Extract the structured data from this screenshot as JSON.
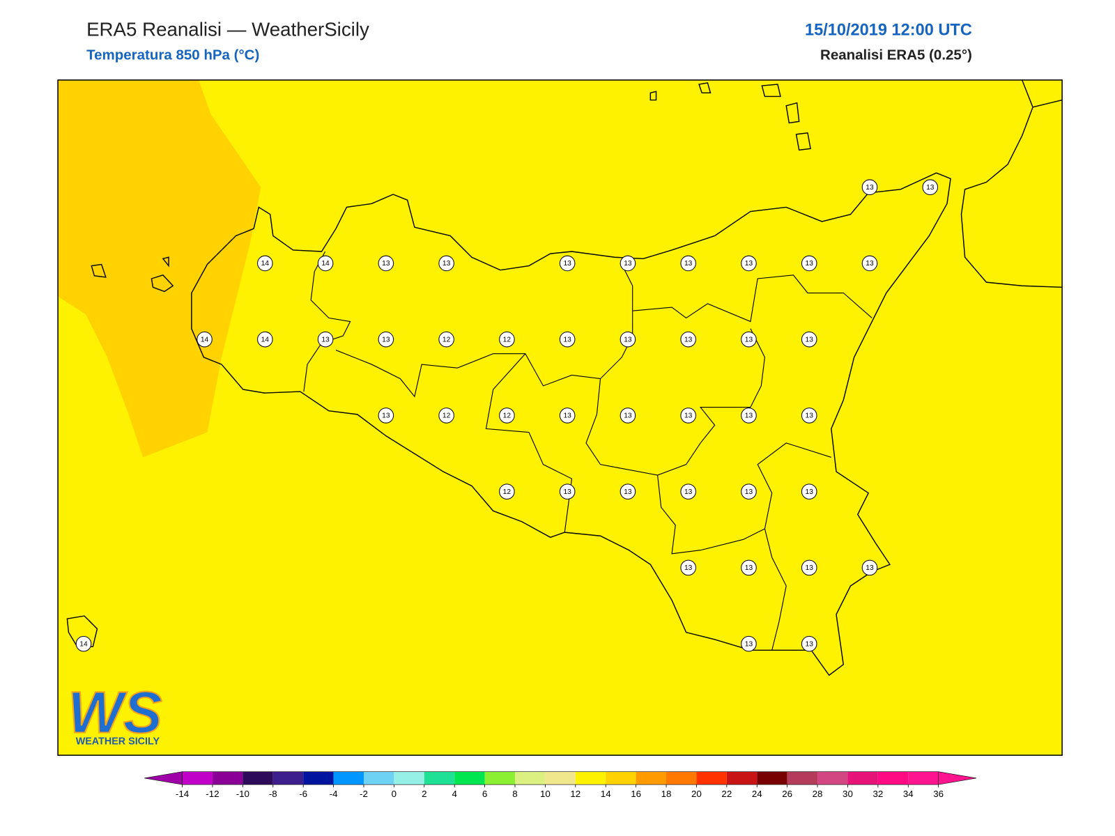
{
  "header": {
    "title": "ERA5 Reanalisi — WeatherSicily",
    "subtitle": "Temperatura 850 hPa (°C)",
    "datetime": "15/10/2019 12:00 UTC",
    "model": "Reanalisi ERA5 (0.25°)"
  },
  "map": {
    "grid": [
      [
        null,
        null,
        null,
        null,
        null,
        null,
        null,
        null,
        null,
        null,
        null,
        null,
        null,
        13,
        13
      ],
      [
        null,
        null,
        null,
        14,
        14,
        13,
        13,
        null,
        13,
        13,
        13,
        13,
        13,
        13,
        null
      ],
      [
        null,
        null,
        14,
        14,
        13,
        13,
        12,
        12,
        13,
        13,
        13,
        13,
        13,
        null,
        null
      ],
      [
        null,
        null,
        null,
        null,
        null,
        13,
        12,
        12,
        13,
        13,
        13,
        13,
        13,
        null,
        null
      ],
      [
        null,
        null,
        null,
        null,
        null,
        null,
        null,
        12,
        13,
        13,
        13,
        13,
        13,
        null,
        null
      ],
      [
        null,
        null,
        null,
        null,
        null,
        null,
        null,
        null,
        null,
        null,
        13,
        13,
        13,
        13,
        null
      ],
      [
        14,
        null,
        null,
        null,
        null,
        null,
        null,
        null,
        null,
        null,
        null,
        13,
        13,
        null,
        null
      ]
    ]
  },
  "colorbar": {
    "ticks": [
      -14,
      -12,
      -10,
      -8,
      -6,
      -4,
      -2,
      0,
      2,
      4,
      6,
      8,
      10,
      12,
      14,
      16,
      18,
      20,
      22,
      24,
      26,
      28,
      30,
      32,
      34,
      36
    ],
    "colors": [
      "#c000c8",
      "#8a0096",
      "#2e0a5a",
      "#3c1e8c",
      "#0014a0",
      "#0096ff",
      "#6ed2f5",
      "#96f0e6",
      "#1ee196",
      "#00e650",
      "#8cf032",
      "#dcf082",
      "#f0e68c",
      "#fff200",
      "#ffd200",
      "#ff9b00",
      "#ff7800",
      "#ff3200",
      "#c81414",
      "#780000",
      "#b43c5a",
      "#d24682",
      "#e61478",
      "#ff0a82",
      "#ff1490"
    ],
    "under_color": "#a000a8",
    "over_color": "#ff1490"
  },
  "logo": {
    "mark": "WS",
    "name": "WEATHER SICILY"
  }
}
